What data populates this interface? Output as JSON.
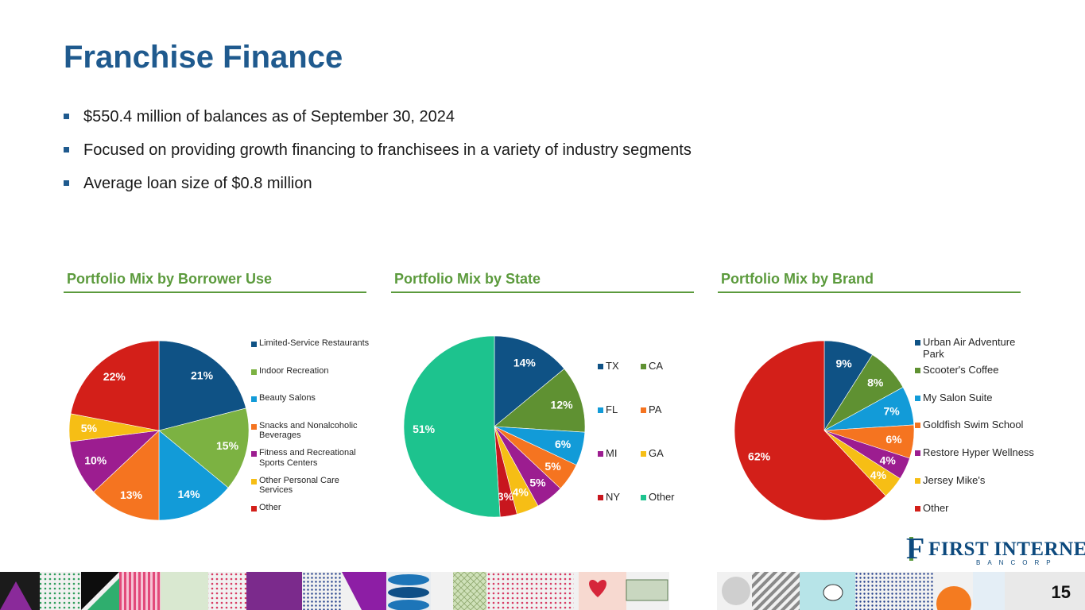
{
  "title": "Franchise Finance",
  "bullets": [
    "$550.4 million of balances as of September 30, 2024",
    "Focused on providing growth financing to franchisees in a variety of industry segments",
    "Average loan size of $0.8 million"
  ],
  "chart_data": [
    {
      "type": "pie",
      "title": "Portfolio Mix by Borrower Use",
      "categories": [
        "Limited-Service Restaurants",
        "Indoor Recreation",
        "Beauty Salons",
        "Snacks and Nonalcoholic Beverages",
        "Fitness and Recreational Sports Centers",
        "Other Personal Care Services",
        "Other"
      ],
      "values": [
        21,
        15,
        14,
        13,
        10,
        5,
        22
      ],
      "labels": [
        "21%",
        "15%",
        "14%",
        "13%",
        "10%",
        "5%",
        "22%"
      ],
      "colors": [
        "#0f5285",
        "#7cb242",
        "#129bd8",
        "#f57420",
        "#9c1d90",
        "#f6be15",
        "#d31f19"
      ],
      "legend_position": "right"
    },
    {
      "type": "pie",
      "title": "Portfolio Mix by State",
      "categories": [
        "TX",
        "CA",
        "FL",
        "PA",
        "MI",
        "GA",
        "NY",
        "Other"
      ],
      "values": [
        14,
        12,
        6,
        5,
        5,
        4,
        3,
        51
      ],
      "labels": [
        "14%",
        "12%",
        "6%",
        "5%",
        "5%",
        "4%",
        "3%",
        "51%"
      ],
      "colors": [
        "#0f5285",
        "#5f9132",
        "#129bd8",
        "#f57420",
        "#9c1d90",
        "#f6be15",
        "#c8161e",
        "#1dc38e"
      ],
      "legend_position": "right"
    },
    {
      "type": "pie",
      "title": "Portfolio Mix by Brand",
      "categories": [
        "Urban Air Adventure Park",
        "Scooter's Coffee",
        "My Salon Suite",
        "Goldfish Swim School",
        "Restore Hyper Wellness",
        "Jersey Mike's",
        "Other"
      ],
      "values": [
        9,
        8,
        7,
        6,
        4,
        4,
        62
      ],
      "labels": [
        "9%",
        "8%",
        "7%",
        "6%",
        "4%",
        "4%",
        "62%"
      ],
      "colors": [
        "#0f5285",
        "#5f9132",
        "#129bd8",
        "#f57420",
        "#9c1d90",
        "#f6be15",
        "#d31f19"
      ],
      "legend_position": "right"
    }
  ],
  "logo": {
    "name": "FIRST INTERNET",
    "subtitle": "BANCORP",
    "initial": "F"
  },
  "page_number": "15"
}
